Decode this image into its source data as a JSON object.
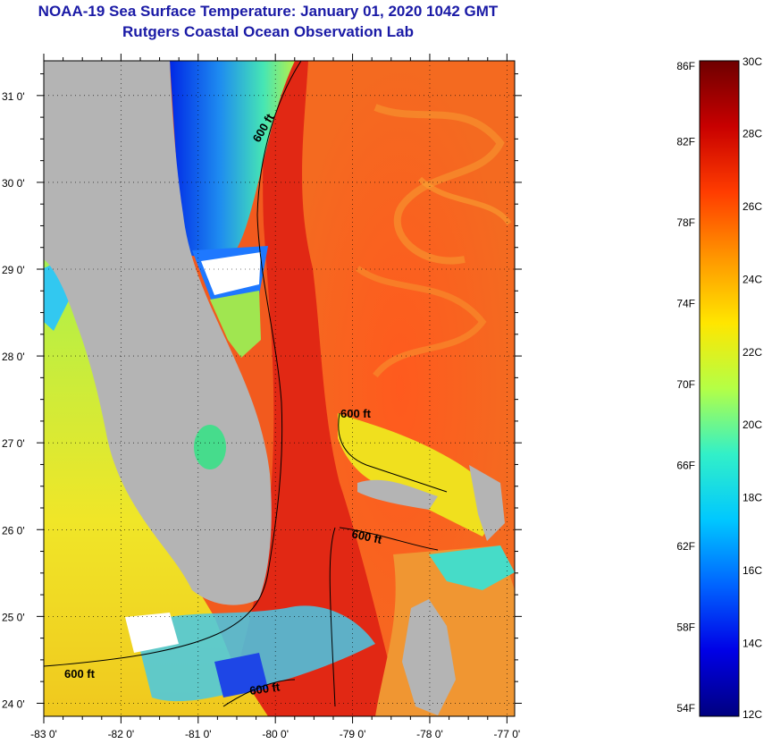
{
  "header": {
    "title": "NOAA-19 Sea Surface Temperature:  January 01, 2020 1042 GMT",
    "subtitle": "Rutgers Coastal Ocean Observation Lab"
  },
  "map": {
    "lat_labels": [
      {
        "value": 31,
        "text": "31 0'"
      },
      {
        "value": 30,
        "text": "30 0'"
      },
      {
        "value": 29,
        "text": "29 0'"
      },
      {
        "value": 28,
        "text": "28 0'"
      },
      {
        "value": 27,
        "text": "27 0'"
      },
      {
        "value": 26,
        "text": "26 0'"
      },
      {
        "value": 25,
        "text": "25 0'"
      },
      {
        "value": 24,
        "text": "24 0'"
      }
    ],
    "lon_labels": [
      {
        "value": -83,
        "text": "-83 0'"
      },
      {
        "value": -82,
        "text": "-82 0'"
      },
      {
        "value": -81,
        "text": "-81 0'"
      },
      {
        "value": -80,
        "text": "-80 0'"
      },
      {
        "value": -79,
        "text": "-79 0'"
      },
      {
        "value": -78,
        "text": "-78 0'"
      },
      {
        "value": -77,
        "text": "-77 0'"
      }
    ],
    "contour_labels": [
      "600 ft",
      "600 ft",
      "600 ft",
      "600 ft",
      "600 ft"
    ],
    "colors": {
      "land": "#b4b4b4",
      "ocean_warm": "#f0461e",
      "gulf_stream": "#e62814"
    }
  },
  "colorbar": {
    "fahrenheit": [
      {
        "value": 86,
        "text": "86F"
      },
      {
        "value": 82,
        "text": "82F"
      },
      {
        "value": 78,
        "text": "78F"
      },
      {
        "value": 74,
        "text": "74F"
      },
      {
        "value": 70,
        "text": "70F"
      },
      {
        "value": 66,
        "text": "66F"
      },
      {
        "value": 62,
        "text": "62F"
      },
      {
        "value": 58,
        "text": "58F"
      },
      {
        "value": 54,
        "text": "54F"
      }
    ],
    "celsius": [
      {
        "value": 30,
        "text": "30C"
      },
      {
        "value": 28,
        "text": "28C"
      },
      {
        "value": 26,
        "text": "26C"
      },
      {
        "value": 24,
        "text": "24C"
      },
      {
        "value": 22,
        "text": "22C"
      },
      {
        "value": 20,
        "text": "20C"
      },
      {
        "value": 18,
        "text": "18C"
      },
      {
        "value": 16,
        "text": "16C"
      },
      {
        "value": 14,
        "text": "14C"
      },
      {
        "value": 12,
        "text": "12C"
      }
    ],
    "stops": [
      "#00007f",
      "#0000e6",
      "#0064ff",
      "#00c8ff",
      "#32f0c8",
      "#b4ff46",
      "#ffe600",
      "#ff9600",
      "#ff3c00",
      "#c80000",
      "#6e0000"
    ]
  }
}
